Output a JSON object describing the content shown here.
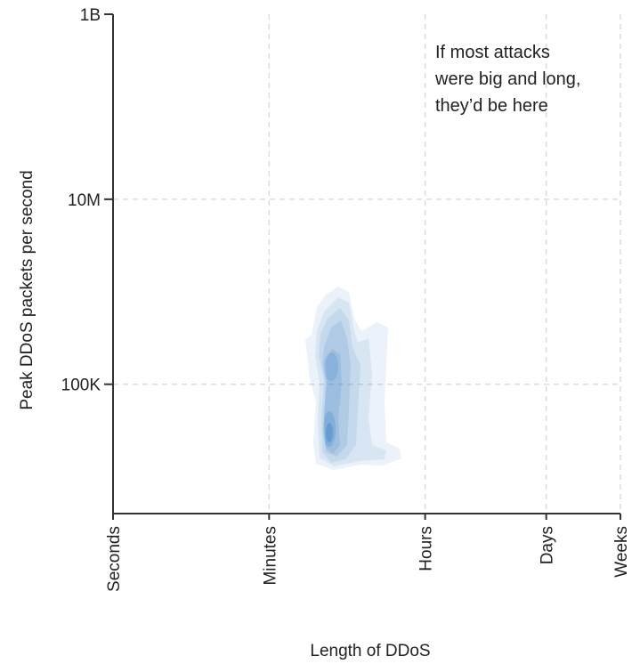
{
  "chart_data": {
    "type": "heatmap",
    "subtype": "2d-density",
    "xlabel": "Length of DDoS",
    "ylabel": "Peak DDoS packets per second",
    "x_scale": "log",
    "y_scale": "log",
    "x_ticks": [
      {
        "label": "Seconds",
        "seconds": 1
      },
      {
        "label": "Minutes",
        "seconds": 60
      },
      {
        "label": "Hours",
        "seconds": 3600
      },
      {
        "label": "Days",
        "seconds": 86400
      },
      {
        "label": "Weeks",
        "seconds": 604800
      }
    ],
    "x_range_seconds": [
      1,
      604800
    ],
    "y_ticks": [
      {
        "label": "100K",
        "value": 100000
      },
      {
        "label": "10M",
        "value": 10000000
      },
      {
        "label": "1B",
        "value": 1000000000
      }
    ],
    "y_range": [
      4000,
      1000000000
    ],
    "grid": true,
    "annotation": {
      "lines": [
        "If most attacks",
        "were big and long,",
        "they’d be here"
      ]
    },
    "density_color": "#1f6fbf",
    "density_peaks": [
      {
        "seconds": 380,
        "pps": 30000,
        "weight": 1.0
      },
      {
        "seconds": 390,
        "pps": 100000,
        "weight": 0.55
      },
      {
        "seconds": 420,
        "pps": 400000,
        "weight": 0.3
      }
    ]
  }
}
